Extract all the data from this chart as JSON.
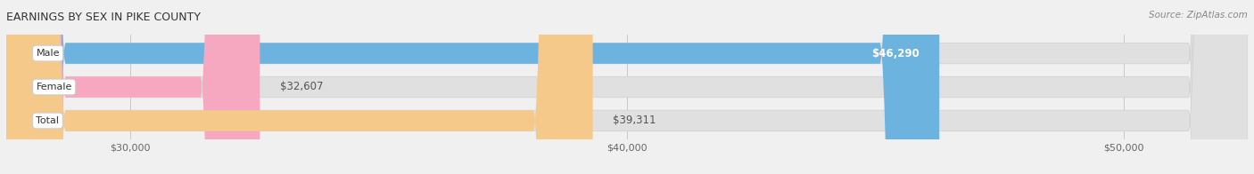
{
  "title": "EARNINGS BY SEX IN PIKE COUNTY",
  "source": "Source: ZipAtlas.com",
  "categories": [
    "Male",
    "Female",
    "Total"
  ],
  "values": [
    46290,
    32607,
    39311
  ],
  "bar_colors": [
    "#6db3e0",
    "#f5a8c0",
    "#f5c98a"
  ],
  "bar_labels": [
    "$46,290",
    "$32,607",
    "$39,311"
  ],
  "xmin": 27500,
  "xmax": 52500,
  "xticks": [
    30000,
    40000,
    50000
  ],
  "xtick_labels": [
    "$30,000",
    "$40,000",
    "$50,000"
  ],
  "bar_height": 0.62,
  "background_color": "#f0f0f0",
  "bar_bg_color": "#e0e0e0",
  "label_inside_color": "white",
  "label_outside_color": "#555555"
}
